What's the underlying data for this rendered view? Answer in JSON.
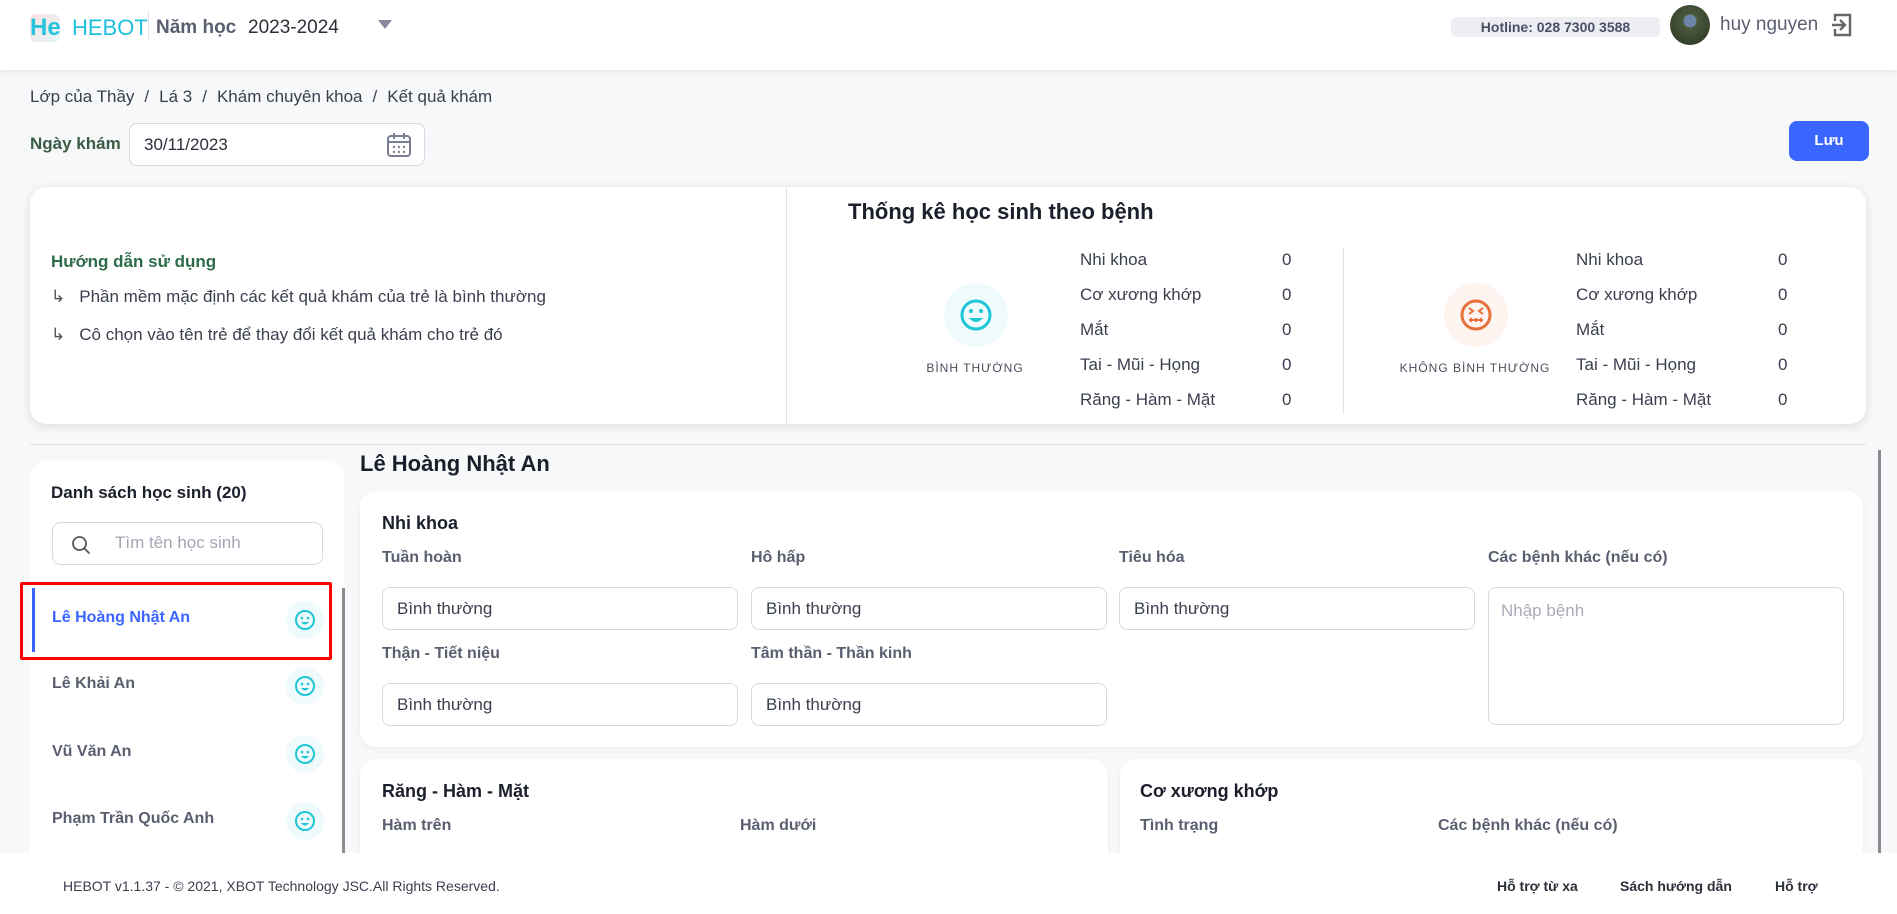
{
  "header": {
    "logo": "He",
    "brand": "HEBOT",
    "school_year_label": "Năm học",
    "school_year": "2023-2024",
    "hotline": "Hotline: 028 7300 3588",
    "user_name": "huy nguyen"
  },
  "breadcrumb": [
    "Lớp của Thầy",
    "/",
    "Lá 3",
    "/",
    "Khám chuyên khoa",
    "/",
    "Kết quả khám"
  ],
  "exam_date": {
    "label": "Ngày khám",
    "value": "30/11/2023"
  },
  "save_label": "Lưu",
  "guide": {
    "title": "Hướng dẫn sử dụng",
    "items": [
      "Phần mềm mặc định các kết quả khám của trẻ là bình thường",
      "Cô chọn vào tên trẻ để thay đổi kết quả khám cho trẻ đó"
    ],
    "bullet": "↳"
  },
  "stats": {
    "title": "Thống kê học sinh theo bệnh",
    "normal": {
      "label": "BÌNH THƯỜNG",
      "color": "#1fc6d6",
      "rows": [
        {
          "name": "Nhi khoa",
          "value": "0"
        },
        {
          "name": "Cơ xương khớp",
          "value": "0"
        },
        {
          "name": "Mắt",
          "value": "0"
        },
        {
          "name": "Tai - Mũi - Họng",
          "value": "0"
        },
        {
          "name": "Răng - Hàm - Mặt",
          "value": "0"
        }
      ]
    },
    "abnormal": {
      "label": "KHÔNG BÌNH THƯỜNG",
      "color": "#e8703a",
      "rows": [
        {
          "name": "Nhi khoa",
          "value": "0"
        },
        {
          "name": "Cơ xương khớp",
          "value": "0"
        },
        {
          "name": "Mắt",
          "value": "0"
        },
        {
          "name": "Tai - Mũi - Họng",
          "value": "0"
        },
        {
          "name": "Răng - Hàm - Mặt",
          "value": "0"
        }
      ]
    }
  },
  "student_list": {
    "title": "Danh sách học sinh (20)",
    "search_placeholder": "Tìm tên học sinh",
    "students": [
      "Lê Hoàng Nhật An",
      "Lê Khải An",
      "Vũ Văn An",
      "Phạm Trần Quốc Anh"
    ],
    "selected": 0
  },
  "detail": {
    "student_name": "Lê Hoàng Nhật An",
    "nhi_khoa": {
      "title": "Nhi khoa",
      "fields": [
        {
          "label": "Tuần hoàn",
          "value": "Bình thường"
        },
        {
          "label": "Hô hấp",
          "value": "Bình thường"
        },
        {
          "label": "Tiêu hóa",
          "value": "Bình thường"
        },
        {
          "label": "Thận - Tiết niệu",
          "value": "Bình thường"
        },
        {
          "label": "Tâm thần - Thần kinh",
          "value": "Bình thường"
        }
      ],
      "other_label": "Các bệnh khác (nếu có)",
      "other_placeholder": "Nhập bệnh"
    },
    "rang_ham_mat": {
      "title": "Răng - Hàm - Mặt",
      "fields": [
        "Hàm trên",
        "Hàm dưới"
      ]
    },
    "co_xuong_khop": {
      "title": "Cơ xương khớp",
      "fields": [
        "Tình trạng",
        "Các bệnh khác (nếu có)"
      ]
    }
  },
  "footer": {
    "copyright": "HEBOT v1.1.37 - © 2021, XBOT Technology JSC.All Rights Reserved.",
    "links": [
      "Hỗ trợ từ xa",
      "Sách hướng dẫn",
      "Hỗ trợ"
    ]
  },
  "accent": "#3a66ff"
}
